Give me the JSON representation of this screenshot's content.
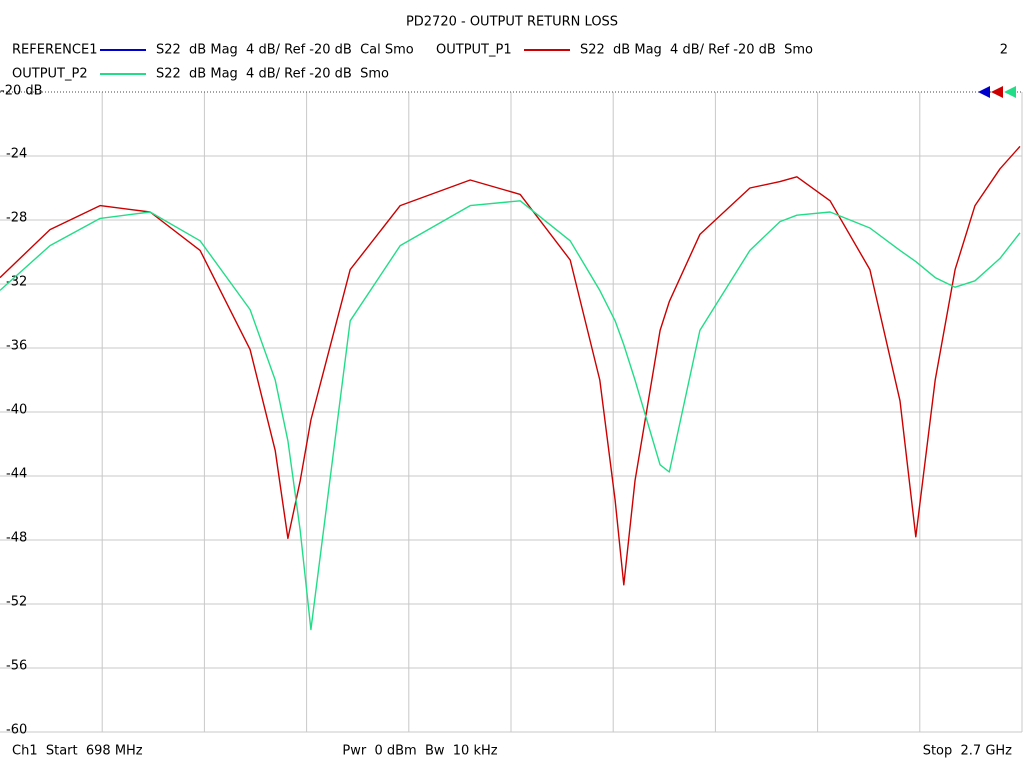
{
  "chart_data": {
    "type": "line",
    "title": "PD2720 - OUTPUT RETURN LOSS",
    "channel_number": "2",
    "footer_left": "Ch1  Start  698 MHz",
    "footer_center": "Pwr  0 dBm  Bw  10 kHz",
    "footer_right": "Stop  2.7 GHz",
    "x": [
      698,
      796,
      894,
      992,
      1090,
      1188,
      1237,
      1262,
      1286,
      1307,
      1384,
      1482,
      1619,
      1717,
      1815,
      1873,
      1903,
      1920,
      1942,
      1991,
      2009,
      2069,
      2167,
      2226,
      2259,
      2324,
      2402,
      2461,
      2492,
      2530,
      2569,
      2608,
      2657,
      2696
    ],
    "xlim": [
      698,
      2700
    ],
    "xticks": [
      898.2,
      1098.4,
      1298.6,
      1498.8,
      1699,
      1899.2,
      2099.4,
      2299.6,
      2499.8
    ],
    "ylim": [
      -60,
      -20
    ],
    "yticks": [
      {
        "value": -20,
        "label": "-20 dB"
      },
      -24,
      -28,
      -32,
      -36,
      -40,
      -44,
      -48,
      -52,
      -56,
      -60
    ],
    "grid": true,
    "series": [
      {
        "name": "REFERENCE1",
        "description": "S22  dB Mag  4 dB/ Ref -20 dB  Cal Smo",
        "color": "#0000cc",
        "values": [
          null,
          null,
          null,
          null,
          null,
          null,
          null,
          null,
          null,
          null,
          null,
          null,
          null,
          null,
          null,
          null,
          null,
          null,
          null,
          null,
          null,
          null,
          null,
          null,
          null,
          null,
          null,
          null,
          null,
          null,
          null,
          null,
          null,
          null
        ]
      },
      {
        "name": "OUTPUT_P1",
        "description": "S22  dB Mag  4 dB/ Ref -20 dB  Smo",
        "color": "#cc0000",
        "values": [
          -31.6,
          -28.6,
          -27.1,
          -27.5,
          -29.9,
          -36.1,
          -42.4,
          -47.9,
          -44.3,
          -40.5,
          -31.1,
          -27.1,
          -25.5,
          -26.4,
          -30.5,
          -38,
          -45.5,
          -50.8,
          -44.3,
          -34.9,
          -33.1,
          -28.9,
          -26,
          -25.6,
          -25.3,
          -26.8,
          -31.1,
          -39.3,
          -47.8,
          -38,
          -31.1,
          -27.1,
          -24.8,
          -23.4
        ]
      },
      {
        "name": "OUTPUT_P2",
        "description": "S22  dB Mag  4 dB/ Ref -20 dB  Smo",
        "color": "#22dd88",
        "values": [
          -32.4,
          -29.6,
          -27.9,
          -27.5,
          -29.3,
          -33.6,
          -38,
          -41.8,
          -47.4,
          -53.6,
          -34.3,
          -29.6,
          -27.1,
          -26.8,
          -29.3,
          -32.4,
          -34.3,
          -35.8,
          -38,
          -43.3,
          -43.75,
          -34.9,
          -29.9,
          -28.1,
          -27.7,
          -27.5,
          -28.5,
          -29.9,
          -30.6,
          -31.6,
          -32.2,
          -31.8,
          -30.4,
          -28.8
        ]
      }
    ]
  }
}
